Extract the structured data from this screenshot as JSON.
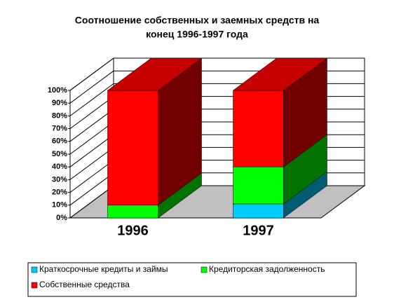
{
  "chart_data": {
    "type": "bar3d_stacked",
    "title": [
      "Соотношение собственных и заемных средств  на",
      "конец 1996-1997 года"
    ],
    "categories": [
      "1996",
      "1997"
    ],
    "series": [
      {
        "name": "Краткосрочные кредиты и займы",
        "color": "#00ccff",
        "values": [
          0,
          11
        ]
      },
      {
        "name": "Кредиторская задолженность",
        "color": "#00ff00",
        "values": [
          10,
          29
        ]
      },
      {
        "name": "Собственные средства",
        "color": "#ff0000",
        "values": [
          90,
          60
        ]
      }
    ],
    "ylim": [
      0,
      100
    ],
    "yticks": [
      {
        "value": 0,
        "label": "0%"
      },
      {
        "value": 10,
        "label": "10%"
      },
      {
        "value": 20,
        "label": "20%"
      },
      {
        "value": 30,
        "label": "30%"
      },
      {
        "value": 40,
        "label": "40%"
      },
      {
        "value": 50,
        "label": "50%"
      },
      {
        "value": 60,
        "label": "60%"
      },
      {
        "value": 70,
        "label": "70%"
      },
      {
        "value": 80,
        "label": "80%"
      },
      {
        "value": 90,
        "label": "90%"
      },
      {
        "value": 100,
        "label": "100%"
      }
    ],
    "grid": true
  }
}
